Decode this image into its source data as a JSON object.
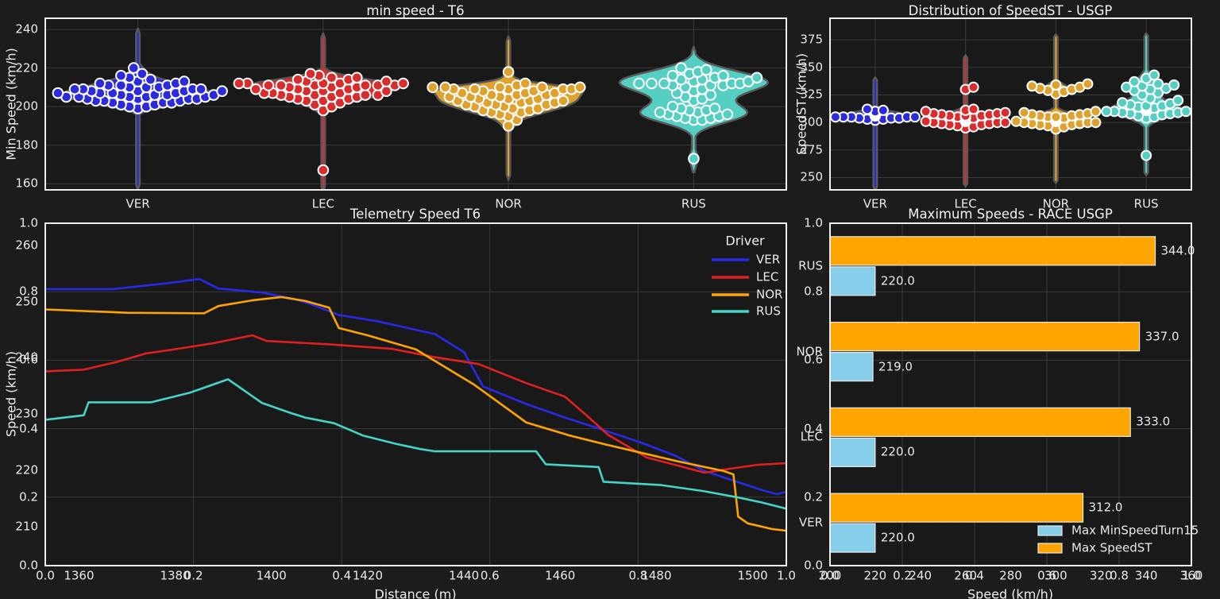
{
  "figure": {
    "background": "#1d1c1c",
    "axes_background": "#1a1919",
    "grid_color": "#3a3a3a",
    "spine_color": "#eeeeee",
    "text_color": "#e9e9e9"
  },
  "chart_data": [
    {
      "type": "violin",
      "title": "min speed - T6",
      "ylabel": "Min Speed (km/h)",
      "ylim": [
        156.8,
        245.8
      ],
      "yticks": [
        160,
        180,
        200,
        220,
        240
      ],
      "categories": [
        "VER",
        "LEC",
        "NOR",
        "RUS"
      ],
      "colors": {
        "VER": "#2b2bdc",
        "LEC": "#d92c2c",
        "NOR": "#e0a22f",
        "RUS": "#56cfc3"
      },
      "violin_range": {
        "VER": [
          157,
          240.5
        ],
        "LEC": [
          156,
          238
        ],
        "NOR": [
          162,
          236.5
        ],
        "RUS": [
          166,
          231
        ]
      },
      "values": {
        "VER": [
          199,
          200,
          200,
          201,
          201,
          202,
          202,
          202,
          203,
          203,
          203,
          204,
          204,
          204,
          204,
          205,
          205,
          205,
          205,
          205,
          206,
          206,
          206,
          206,
          207,
          207,
          207,
          207,
          208,
          208,
          208,
          208,
          208,
          209,
          209,
          209,
          209,
          210,
          210,
          210,
          211,
          211,
          211,
          212,
          212,
          213,
          213,
          214,
          215,
          216,
          217,
          220
        ],
        "LEC": [
          167,
          198,
          200,
          201,
          202,
          203,
          203,
          204,
          204,
          205,
          205,
          205,
          206,
          206,
          206,
          206,
          207,
          207,
          207,
          208,
          208,
          208,
          209,
          209,
          209,
          210,
          210,
          210,
          211,
          211,
          211,
          211,
          211,
          211,
          212,
          212,
          212,
          212,
          212,
          212,
          213,
          213,
          214,
          214,
          215,
          215,
          216,
          217
        ],
        "NOR": [
          190,
          193,
          195,
          196,
          197,
          197,
          198,
          198,
          199,
          199,
          200,
          200,
          201,
          201,
          201,
          202,
          202,
          202,
          203,
          203,
          203,
          204,
          204,
          204,
          205,
          205,
          205,
          206,
          206,
          206,
          207,
          207,
          207,
          208,
          208,
          209,
          209,
          209,
          209,
          209,
          210,
          210,
          210,
          210,
          210,
          211,
          212,
          218
        ],
        "RUS": [
          173,
          193,
          193,
          194,
          194,
          195,
          195,
          196,
          196,
          197,
          197,
          198,
          198,
          199,
          199,
          200,
          203,
          204,
          205,
          206,
          207,
          208,
          209,
          210,
          211,
          211,
          211,
          212,
          212,
          212,
          212,
          212,
          213,
          213,
          214,
          214,
          215,
          215,
          216,
          216,
          217,
          218,
          219,
          220
        ]
      }
    },
    {
      "type": "violin",
      "title": "Distribution of SpeedST - USGP",
      "ylabel": "SpeedST (km/h)",
      "ylim": [
        238.8,
        394.6
      ],
      "yticks": [
        250,
        275,
        300,
        325,
        350,
        375
      ],
      "categories": [
        "VER",
        "LEC",
        "NOR",
        "RUS"
      ],
      "colors": {
        "VER": "#2b2bdc",
        "LEC": "#d92c2c",
        "NOR": "#e0a22f",
        "RUS": "#56cfc3"
      },
      "violin_range": {
        "VER": [
          239,
          341
        ],
        "LEC": [
          242,
          361
        ],
        "NOR": [
          245,
          380
        ],
        "RUS": [
          252,
          381
        ]
      },
      "values": {
        "VER": [
          302,
          303,
          303,
          304,
          304,
          304,
          305,
          305,
          305,
          305,
          305,
          306,
          306,
          306,
          306,
          306,
          306,
          307,
          307,
          307,
          307,
          307,
          308,
          308,
          308,
          308,
          309,
          309,
          309,
          310,
          310,
          310,
          311,
          312
        ],
        "LEC": [
          295,
          296,
          297,
          298,
          298,
          299,
          299,
          300,
          300,
          300,
          301,
          301,
          301,
          302,
          302,
          302,
          302,
          303,
          303,
          303,
          303,
          304,
          304,
          304,
          305,
          305,
          305,
          306,
          306,
          306,
          307,
          307,
          308,
          308,
          309,
          310,
          311,
          312,
          330,
          332
        ],
        "NOR": [
          294,
          296,
          297,
          298,
          298,
          299,
          299,
          300,
          300,
          300,
          301,
          301,
          301,
          302,
          302,
          302,
          302,
          303,
          303,
          303,
          304,
          304,
          304,
          305,
          305,
          305,
          306,
          306,
          307,
          307,
          308,
          309,
          310,
          326,
          328,
          329,
          330,
          331,
          332,
          333,
          334,
          335
        ],
        "RUS": [
          270,
          304,
          305,
          306,
          307,
          308,
          308,
          309,
          309,
          310,
          310,
          310,
          311,
          311,
          311,
          312,
          312,
          312,
          313,
          313,
          313,
          314,
          314,
          315,
          315,
          316,
          317,
          318,
          320,
          322,
          325,
          327,
          329,
          330,
          331,
          332,
          333,
          334,
          335,
          337,
          340,
          343
        ]
      }
    },
    {
      "type": "line",
      "title": "Telemetry Speed T6",
      "xlabel": "Distance (m)",
      "ylabel": "Speed (km/h)",
      "xlim": [
        1353,
        1507
      ],
      "ylim": [
        203.1,
        263.9
      ],
      "xticks": [
        1360,
        1380,
        1400,
        1420,
        1440,
        1460,
        1480,
        1500
      ],
      "yticks": [
        210,
        220,
        230,
        240,
        250,
        260
      ],
      "twin_xticks": [
        "0.0",
        "0.2",
        "0.4",
        "0.6",
        "0.8",
        "1.0"
      ],
      "twin_yticks": [
        "0.0",
        "0.2",
        "0.4",
        "0.6",
        "0.8",
        "1.0"
      ],
      "legend_title": "Driver",
      "series": [
        {
          "name": "VER",
          "color": "#2828e8",
          "points": [
            [
              1353,
              252.2
            ],
            [
              1367,
              252.2
            ],
            [
              1379,
              253.3
            ],
            [
              1385,
              254.0
            ],
            [
              1389,
              252.3
            ],
            [
              1398,
              251.6
            ],
            [
              1404,
              250.6
            ],
            [
              1408,
              249.6
            ],
            [
              1414,
              247.6
            ],
            [
              1422,
              246.5
            ],
            [
              1434,
              244.2
            ],
            [
              1440,
              241.0
            ],
            [
              1444,
              234.9
            ],
            [
              1453,
              231.8
            ],
            [
              1461,
              229.4
            ],
            [
              1470,
              226.9
            ],
            [
              1477,
              224.9
            ],
            [
              1484,
              222.6
            ],
            [
              1490,
              219.9
            ],
            [
              1496,
              218.2
            ],
            [
              1502,
              216.5
            ],
            [
              1505,
              215.8
            ],
            [
              1507,
              216.2
            ]
          ]
        },
        {
          "name": "LEC",
          "color": "#e02020",
          "points": [
            [
              1353,
              237.6
            ],
            [
              1361,
              237.9
            ],
            [
              1368,
              239.3
            ],
            [
              1374,
              240.8
            ],
            [
              1379,
              241.4
            ],
            [
              1388,
              242.6
            ],
            [
              1396,
              244.0
            ],
            [
              1399,
              243.0
            ],
            [
              1412,
              242.4
            ],
            [
              1425,
              241.6
            ],
            [
              1434,
              240.1
            ],
            [
              1443,
              238.9
            ],
            [
              1453,
              235.5
            ],
            [
              1461,
              233.1
            ],
            [
              1466,
              229.4
            ],
            [
              1470,
              226.3
            ],
            [
              1475,
              223.8
            ],
            [
              1478,
              222.3
            ],
            [
              1483,
              221.2
            ],
            [
              1490,
              219.6
            ],
            [
              1496,
              220.4
            ],
            [
              1501,
              221.0
            ],
            [
              1507,
              221.3
            ]
          ]
        },
        {
          "name": "NOR",
          "color": "#ffa500",
          "points": [
            [
              1353,
              248.6
            ],
            [
              1370,
              248.0
            ],
            [
              1386,
              247.9
            ],
            [
              1389,
              249.2
            ],
            [
              1396,
              250.2
            ],
            [
              1402,
              250.8
            ],
            [
              1407,
              250.1
            ],
            [
              1412,
              248.9
            ],
            [
              1414,
              245.3
            ],
            [
              1420,
              244.0
            ],
            [
              1430,
              241.5
            ],
            [
              1442,
              235.3
            ],
            [
              1453,
              228.5
            ],
            [
              1462,
              226.2
            ],
            [
              1470,
              224.5
            ],
            [
              1477,
              223.1
            ],
            [
              1484,
              221.7
            ],
            [
              1494,
              219.9
            ],
            [
              1496,
              219.3
            ],
            [
              1497,
              211.8
            ],
            [
              1499,
              210.6
            ],
            [
              1504,
              209.6
            ],
            [
              1507,
              209.3
            ]
          ]
        },
        {
          "name": "RUS",
          "color": "#45d4c6",
          "points": [
            [
              1353,
              229.0
            ],
            [
              1361,
              229.8
            ],
            [
              1362,
              232.1
            ],
            [
              1375,
              232.1
            ],
            [
              1383,
              233.8
            ],
            [
              1391,
              236.2
            ],
            [
              1398,
              232.0
            ],
            [
              1404,
              230.2
            ],
            [
              1407,
              229.4
            ],
            [
              1413,
              228.4
            ],
            [
              1419,
              226.2
            ],
            [
              1426,
              224.7
            ],
            [
              1431,
              223.8
            ],
            [
              1434,
              223.4
            ],
            [
              1455,
              223.4
            ],
            [
              1457,
              221.1
            ],
            [
              1468,
              220.6
            ],
            [
              1469,
              218.0
            ],
            [
              1481,
              217.4
            ],
            [
              1490,
              216.3
            ],
            [
              1497,
              215.2
            ],
            [
              1502,
              214.3
            ],
            [
              1507,
              213.2
            ]
          ]
        }
      ]
    },
    {
      "type": "hbar",
      "title": "Maximum Speeds - RACE USGP",
      "xlabel": "Speed (km/h)",
      "xlim": [
        200,
        360
      ],
      "xticks": [
        200,
        220,
        240,
        260,
        280,
        300,
        320,
        340,
        360
      ],
      "twin_xticks": [
        "0.0",
        "0.2",
        "0.4",
        "0.6",
        "0.8",
        "1.0"
      ],
      "twin_yticks": [
        "0.0",
        "0.2",
        "0.4",
        "0.6",
        "0.8",
        "1.0"
      ],
      "categories": [
        "VER",
        "LEC",
        "NOR",
        "RUS"
      ],
      "series": [
        {
          "name": "Max MinSpeedTurn15",
          "color": "#87CEEB",
          "values": [
            220.0,
            220.0,
            219.0,
            220.0
          ]
        },
        {
          "name": "Max SpeedST",
          "color": "#FFA500",
          "values": [
            312.0,
            333.0,
            337.0,
            344.0
          ]
        }
      ]
    }
  ]
}
